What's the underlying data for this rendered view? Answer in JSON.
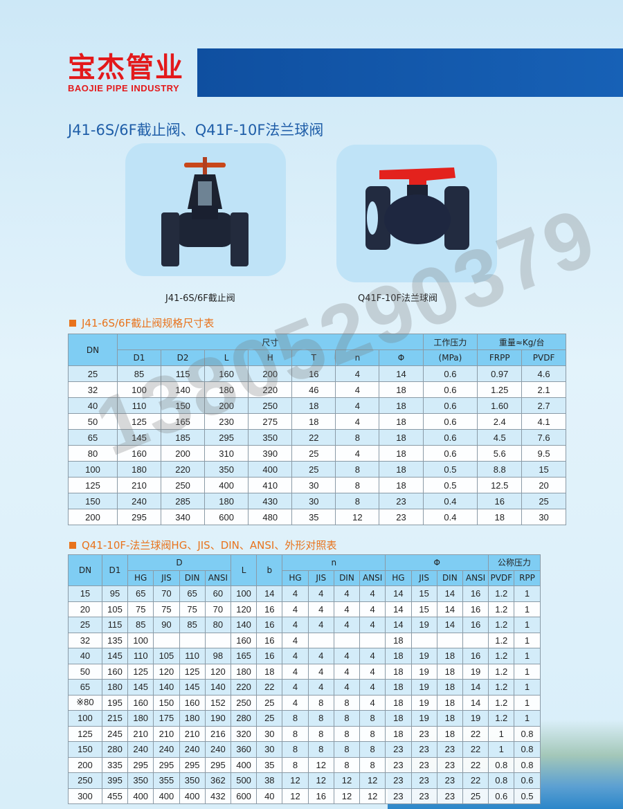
{
  "brand": {
    "name_cn": "宝杰管业",
    "name_en": "BAOJIE PIPE INDUSTRY",
    "color": "#e3191b"
  },
  "title": "J41-6S/6F截止阀、Q41F-10F法兰球阀",
  "products": [
    {
      "caption": "J41-6S/6F截止阀",
      "icon": "globe-valve-image"
    },
    {
      "caption": "Q41F-10F法兰球阀",
      "icon": "ball-valve-image"
    }
  ],
  "watermark": "13805290379",
  "table1": {
    "heading": "J41-6S/6F截止阀规格尺寸表",
    "h_dn": "DN",
    "h_size": "尺寸",
    "h_pressure": "工作压力",
    "h_pressure_unit": "(MPa)",
    "h_weight": "重量≈Kg/台",
    "sub": [
      "D1",
      "D2",
      "L",
      "H",
      "T",
      "n",
      "Φ"
    ],
    "weight_sub": [
      "FRPP",
      "PVDF"
    ],
    "rows": [
      [
        "25",
        "85",
        "115",
        "160",
        "200",
        "16",
        "4",
        "14",
        "0.6",
        "0.97",
        "4.6"
      ],
      [
        "32",
        "100",
        "140",
        "180",
        "220",
        "46",
        "4",
        "18",
        "0.6",
        "1.25",
        "2.1"
      ],
      [
        "40",
        "110",
        "150",
        "200",
        "250",
        "18",
        "4",
        "18",
        "0.6",
        "1.60",
        "2.7"
      ],
      [
        "50",
        "125",
        "165",
        "230",
        "275",
        "18",
        "4",
        "18",
        "0.6",
        "2.4",
        "4.1"
      ],
      [
        "65",
        "145",
        "185",
        "295",
        "350",
        "22",
        "8",
        "18",
        "0.6",
        "4.5",
        "7.6"
      ],
      [
        "80",
        "160",
        "200",
        "310",
        "390",
        "25",
        "4",
        "18",
        "0.6",
        "5.6",
        "9.5"
      ],
      [
        "100",
        "180",
        "220",
        "350",
        "400",
        "25",
        "8",
        "18",
        "0.5",
        "8.8",
        "15"
      ],
      [
        "125",
        "210",
        "250",
        "400",
        "410",
        "30",
        "8",
        "18",
        "0.5",
        "12.5",
        "20"
      ],
      [
        "150",
        "240",
        "285",
        "180",
        "430",
        "30",
        "8",
        "23",
        "0.4",
        "16",
        "25"
      ],
      [
        "200",
        "295",
        "340",
        "600",
        "480",
        "35",
        "12",
        "23",
        "0.4",
        "18",
        "30"
      ]
    ]
  },
  "table2": {
    "heading": "Q41-10F-法兰球阀HG、JIS、DIN、ANSI、外形对照表",
    "h_dn": "DN",
    "h_d1": "D1",
    "h_d": "D",
    "h_l": "L",
    "h_b": "b",
    "h_n": "n",
    "h_phi": "Φ",
    "h_pn": "公称压力",
    "std": [
      "HG",
      "JIS",
      "DIN",
      "ANSI"
    ],
    "pn_sub": [
      "PVDF",
      "RPP"
    ],
    "rows": [
      [
        "15",
        "95",
        "65",
        "70",
        "65",
        "60",
        "100",
        "14",
        "4",
        "4",
        "4",
        "4",
        "14",
        "15",
        "14",
        "16",
        "1.2",
        "1"
      ],
      [
        "20",
        "105",
        "75",
        "75",
        "75",
        "70",
        "120",
        "16",
        "4",
        "4",
        "4",
        "4",
        "14",
        "15",
        "14",
        "16",
        "1.2",
        "1"
      ],
      [
        "25",
        "115",
        "85",
        "90",
        "85",
        "80",
        "140",
        "16",
        "4",
        "4",
        "4",
        "4",
        "14",
        "19",
        "14",
        "16",
        "1.2",
        "1"
      ],
      [
        "32",
        "135",
        "100",
        "",
        "",
        "",
        "160",
        "16",
        "4",
        "",
        "",
        "",
        "18",
        "",
        "",
        "",
        "1.2",
        "1"
      ],
      [
        "40",
        "145",
        "110",
        "105",
        "110",
        "98",
        "165",
        "16",
        "4",
        "4",
        "4",
        "4",
        "18",
        "19",
        "18",
        "16",
        "1.2",
        "1"
      ],
      [
        "50",
        "160",
        "125",
        "120",
        "125",
        "120",
        "180",
        "18",
        "4",
        "4",
        "4",
        "4",
        "18",
        "19",
        "18",
        "19",
        "1.2",
        "1"
      ],
      [
        "65",
        "180",
        "145",
        "140",
        "145",
        "140",
        "220",
        "22",
        "4",
        "4",
        "4",
        "4",
        "18",
        "19",
        "18",
        "14",
        "1.2",
        "1"
      ],
      [
        "※80",
        "195",
        "160",
        "150",
        "160",
        "152",
        "250",
        "25",
        "4",
        "8",
        "8",
        "4",
        "18",
        "19",
        "18",
        "14",
        "1.2",
        "1"
      ],
      [
        "100",
        "215",
        "180",
        "175",
        "180",
        "190",
        "280",
        "25",
        "8",
        "8",
        "8",
        "8",
        "18",
        "19",
        "18",
        "19",
        "1.2",
        "1"
      ],
      [
        "125",
        "245",
        "210",
        "210",
        "210",
        "216",
        "320",
        "30",
        "8",
        "8",
        "8",
        "8",
        "18",
        "23",
        "18",
        "22",
        "1",
        "0.8"
      ],
      [
        "150",
        "280",
        "240",
        "240",
        "240",
        "240",
        "360",
        "30",
        "8",
        "8",
        "8",
        "8",
        "23",
        "23",
        "23",
        "22",
        "1",
        "0.8"
      ],
      [
        "200",
        "335",
        "295",
        "295",
        "295",
        "295",
        "400",
        "35",
        "8",
        "12",
        "8",
        "8",
        "23",
        "23",
        "23",
        "22",
        "0.8",
        "0.8"
      ],
      [
        "250",
        "395",
        "350",
        "355",
        "350",
        "362",
        "500",
        "38",
        "12",
        "12",
        "12",
        "12",
        "23",
        "23",
        "23",
        "22",
        "0.8",
        "0.6"
      ],
      [
        "300",
        "455",
        "400",
        "400",
        "400",
        "432",
        "600",
        "40",
        "12",
        "16",
        "12",
        "12",
        "23",
        "23",
        "23",
        "25",
        "0.6",
        "0.5"
      ]
    ]
  }
}
